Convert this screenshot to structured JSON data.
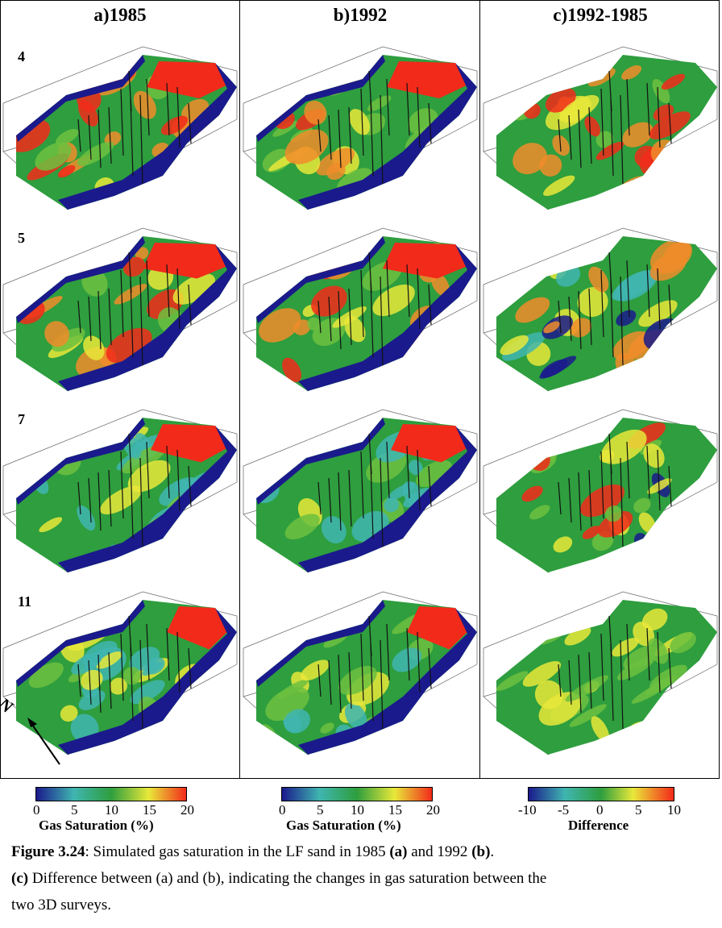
{
  "columns": [
    {
      "title": "a)1985"
    },
    {
      "title": "b)1992"
    },
    {
      "title": "c)1992-1985"
    }
  ],
  "rows": [
    {
      "label": "4"
    },
    {
      "label": "5"
    },
    {
      "label": "7"
    },
    {
      "label": "11"
    }
  ],
  "north_label": "N",
  "colorbars": [
    {
      "ticks": [
        "0",
        "5",
        "10",
        "15",
        "20"
      ],
      "label": "Gas Saturation (%)",
      "scheme": "saturation"
    },
    {
      "ticks": [
        "0",
        "5",
        "10",
        "15",
        "20"
      ],
      "label": "Gas Saturation (%)",
      "scheme": "saturation"
    },
    {
      "ticks": [
        "-10",
        "-5",
        "0",
        "5",
        "10"
      ],
      "label": "Difference",
      "scheme": "difference"
    }
  ],
  "caption": {
    "fig_label": "Figure 3.24",
    "line1_text": ": Simulated gas saturation in the LF sand in 1985 ",
    "a_marker": "(a)",
    "and_text": " and 1992 ",
    "b_marker": "(b)",
    "period": ".",
    "c_marker": "(c)",
    "line2_text": " Difference between (a) and (b), indicating the changes in gas saturation between the",
    "line3_text": "two 3D surveys."
  },
  "colors": {
    "dark_blue": "#1a1a8c",
    "green": "#2e9e3e",
    "light_green": "#6cc040",
    "yellow": "#e8e83a",
    "orange": "#f08c2a",
    "red": "#f22a1a",
    "cyan": "#3fb5b0"
  }
}
